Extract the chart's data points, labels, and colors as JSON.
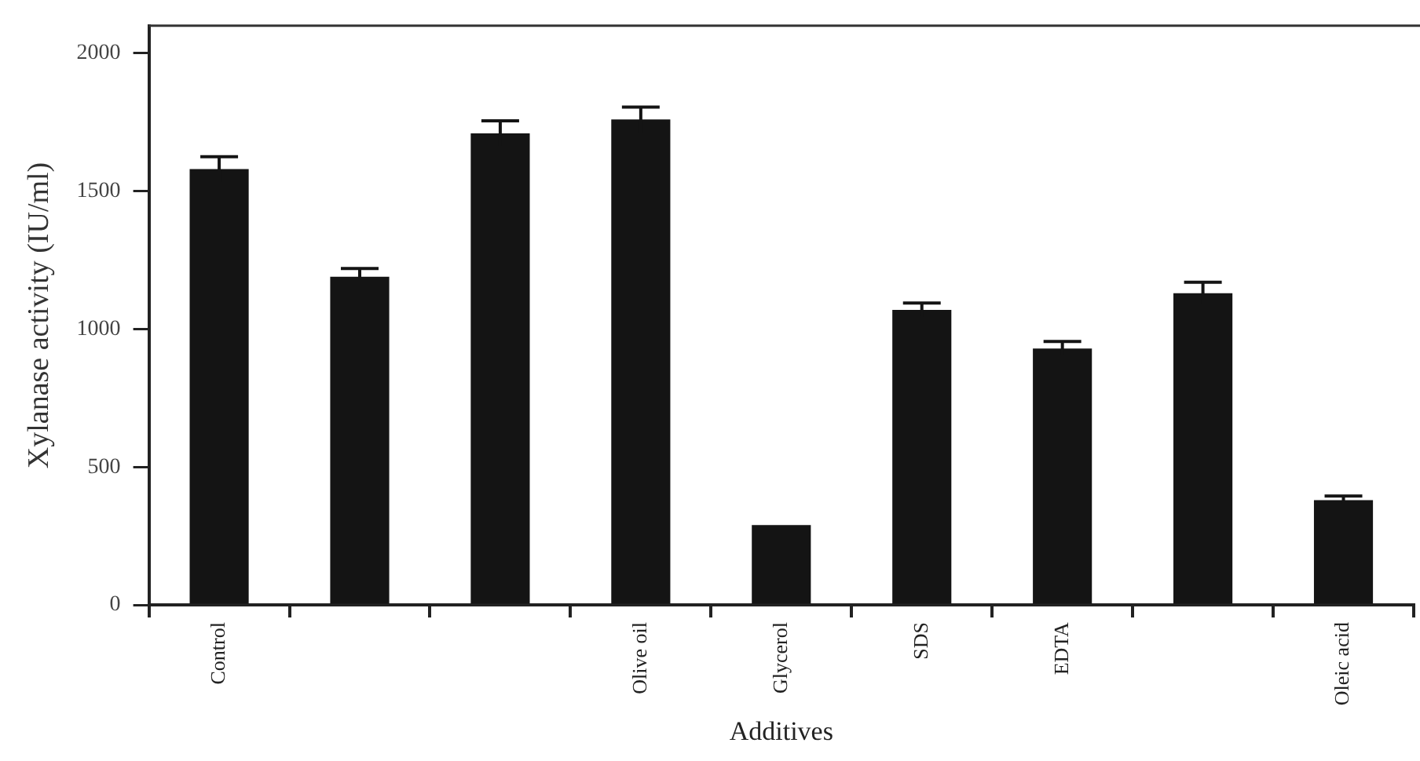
{
  "chart_data": {
    "type": "bar",
    "xlabel": "Additives",
    "ylabel": "Xylanase activity (IU/ml)",
    "categories": [
      "Control",
      null,
      null,
      "Olive oil",
      "Glycerol",
      "SDS",
      "EDTA",
      null,
      "Oleic acid"
    ],
    "values": [
      1580,
      1190,
      1710,
      1760,
      290,
      1070,
      930,
      1130,
      380
    ],
    "errors": [
      45,
      30,
      45,
      45,
      null,
      25,
      25,
      40,
      15
    ],
    "color": "#141414",
    "ylim": [
      0,
      2100
    ],
    "yticks": [
      0,
      500,
      1000,
      1500,
      2000
    ],
    "grid": false,
    "legend": false
  }
}
